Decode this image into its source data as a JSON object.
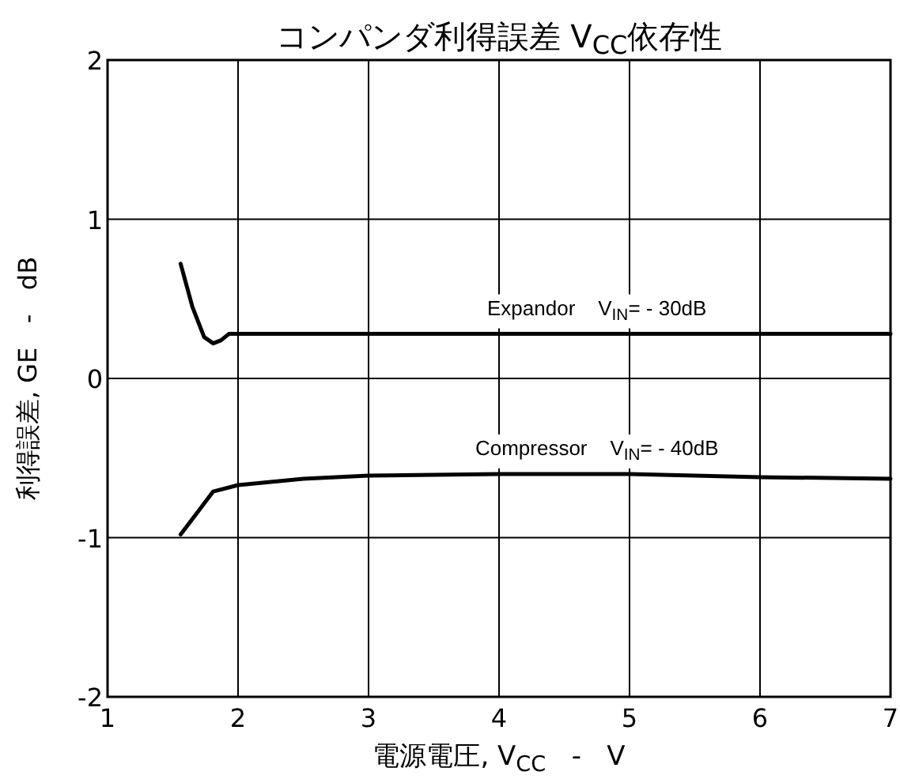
{
  "chart_data": {
    "type": "line",
    "title": "コンパンダ利得誤差 V$_{CC}$依存性",
    "xlabel": "電源電圧, V$_{CC}$   -   V",
    "ylabel": "利得誤差, GE   -   dB",
    "xlim": [
      1,
      7
    ],
    "ylim": [
      -2,
      2
    ],
    "xticks": [
      1,
      2,
      3,
      4,
      5,
      6,
      7
    ],
    "yticks": [
      -2,
      -1,
      0,
      1,
      2
    ],
    "grid": true,
    "marker": "none",
    "line_style": "solid",
    "series": [
      {
        "name": "Expandor    V$_{IN}$= - 30dB",
        "color": "#000000",
        "x": [
          1.56,
          1.65,
          1.74,
          1.81,
          1.87,
          1.93,
          3,
          4,
          5,
          6,
          7
        ],
        "values": [
          0.72,
          0.45,
          0.26,
          0.22,
          0.24,
          0.28,
          0.28,
          0.28,
          0.28,
          0.28,
          0.28
        ]
      },
      {
        "name": "Compressor    V$_{IN}$= - 40dB",
        "color": "#000000",
        "x": [
          1.56,
          1.81,
          2,
          2.5,
          3,
          4,
          5,
          6,
          7
        ],
        "values": [
          -0.98,
          -0.71,
          -0.67,
          -0.63,
          -0.61,
          -0.6,
          -0.6,
          -0.62,
          -0.63
        ]
      }
    ]
  }
}
